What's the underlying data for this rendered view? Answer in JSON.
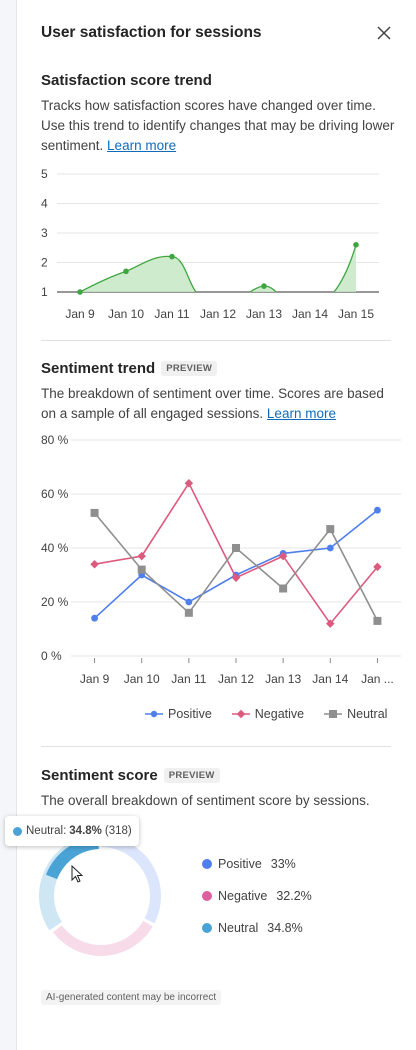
{
  "panel": {
    "title": "User satisfaction for sessions",
    "close_icon": "close-icon"
  },
  "satisfaction": {
    "heading": "Satisfaction score trend",
    "description": "Tracks how satisfaction scores have changed over time. Use this trend to identify changes that may be driving lower sentiment.",
    "learn_more": "Learn more"
  },
  "sentiment_trend": {
    "heading": "Sentiment trend",
    "badge": "PREVIEW",
    "description": "The breakdown of sentiment over time. Scores are based on a sample of all engaged sessions.",
    "learn_more": "Learn more"
  },
  "sentiment_score": {
    "heading": "Sentiment score",
    "badge": "PREVIEW",
    "description": "The overall breakdown of sentiment score by sessions.",
    "tooltip": {
      "label": "Neutral:",
      "value": "34.8%",
      "count": "(318)"
    },
    "legend": [
      {
        "label": "Positive",
        "value": "33%",
        "color": "#4f7fec"
      },
      {
        "label": "Negative",
        "value": "32.2%",
        "color": "#dc5fa0"
      },
      {
        "label": "Neutral",
        "value": "34.8%",
        "color": "#4aa3d5"
      }
    ]
  },
  "footer": {
    "ai_note": "AI-generated content may be incorrect"
  },
  "chart_data": [
    {
      "type": "area",
      "title": "Satisfaction score trend",
      "categories": [
        "Jan 9",
        "Jan 10",
        "Jan 11",
        "Jan 12",
        "Jan 13",
        "Jan 14",
        "Jan 15"
      ],
      "y_ticks": [
        "1",
        "2",
        "3",
        "4",
        "5"
      ],
      "ylim": [
        1,
        5
      ],
      "grid": true,
      "color": "#3fa53f",
      "fill": "#c5e8c5",
      "series": [
        {
          "values": [
            1.0,
            1.7,
            2.2,
            null,
            1.2,
            null,
            2.6
          ]
        }
      ]
    },
    {
      "type": "line",
      "title": "Sentiment trend",
      "categories": [
        "Jan 9",
        "Jan 10",
        "Jan 11",
        "Jan 12",
        "Jan 13",
        "Jan 14",
        "Jan ..."
      ],
      "y_ticks": [
        "0 %",
        "20 %",
        "40 %",
        "60 %",
        "80 %"
      ],
      "ylim": [
        0,
        80
      ],
      "grid": true,
      "legend_position": "bottom",
      "series": [
        {
          "name": "Positive",
          "color": "#4f7fec",
          "marker": "circle",
          "values": [
            14,
            30,
            20,
            30,
            38,
            40,
            54
          ]
        },
        {
          "name": "Negative",
          "color": "#dc5a7e",
          "marker": "diamond",
          "values": [
            34,
            37,
            64,
            29,
            37,
            12,
            33
          ]
        },
        {
          "name": "Neutral",
          "color": "#8f8f8f",
          "marker": "square",
          "values": [
            53,
            32,
            16,
            40,
            25,
            47,
            13
          ]
        }
      ]
    },
    {
      "type": "pie",
      "title": "Sentiment score",
      "donut": true,
      "highlighted": "Neutral",
      "slices": [
        {
          "name": "Positive",
          "value": 33,
          "color": "#4f7fec"
        },
        {
          "name": "Negative",
          "value": 32.2,
          "color": "#dc5fa0"
        },
        {
          "name": "Neutral",
          "value": 34.8,
          "color": "#4aa3d5"
        }
      ]
    }
  ]
}
